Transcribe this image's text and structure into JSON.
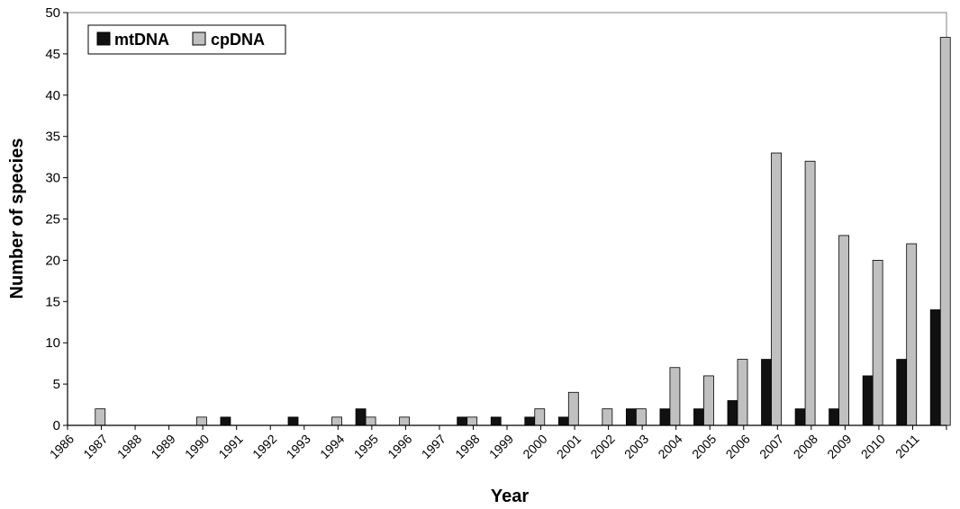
{
  "chart_data": {
    "type": "bar",
    "title": "",
    "xlabel": "Year",
    "ylabel": "Number of species",
    "ylim": [
      0,
      50
    ],
    "yticks": [
      0,
      5,
      10,
      15,
      20,
      25,
      30,
      35,
      40,
      45,
      50
    ],
    "grid": false,
    "legend_position": "top-left",
    "categories": [
      "1986",
      "1987",
      "1988",
      "1989",
      "1990",
      "1991",
      "1992",
      "1993",
      "1994",
      "1995",
      "1996",
      "1997",
      "1998",
      "1999",
      "2000",
      "2001",
      "2002",
      "2003",
      "2004",
      "2005",
      "2006",
      "2007",
      "2008",
      "2009",
      "2010",
      "2011"
    ],
    "series": [
      {
        "name": "mtDNA",
        "color": "#111111",
        "values": [
          0,
          0,
          0,
          0,
          1,
          0,
          1,
          0,
          2,
          0,
          0,
          1,
          1,
          1,
          1,
          0,
          2,
          2,
          2,
          3,
          8,
          2,
          2,
          6,
          8,
          14
        ]
      },
      {
        "name": "cpDNA",
        "color": "#c0c0c0",
        "values": [
          2,
          0,
          0,
          1,
          0,
          0,
          0,
          1,
          1,
          1,
          0,
          1,
          0,
          2,
          4,
          2,
          2,
          7,
          6,
          8,
          33,
          32,
          23,
          20,
          22,
          47
        ]
      }
    ]
  }
}
